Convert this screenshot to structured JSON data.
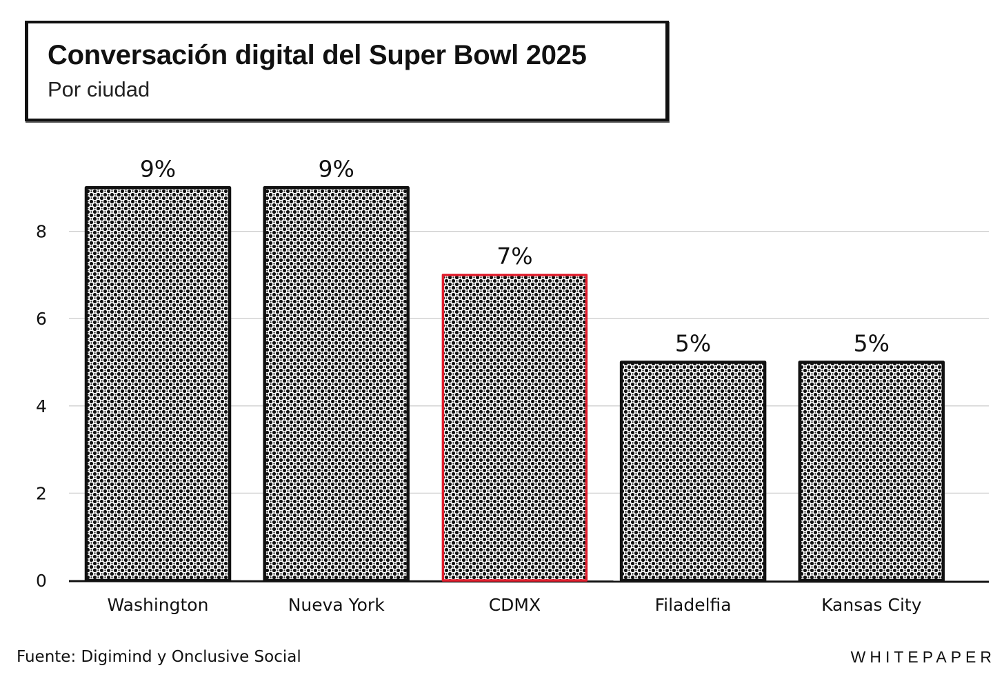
{
  "chart_data": {
    "type": "bar",
    "title": "Conversación digital del Super Bowl 2025",
    "subtitle": "Por ciudad",
    "categories": [
      "Washington",
      "Nueva York",
      "CDMX",
      "Filadelfia",
      "Kansas City"
    ],
    "values": [
      9,
      9,
      7,
      5,
      5
    ],
    "data_labels": [
      "9%",
      "9%",
      "7%",
      "5%",
      "5%"
    ],
    "highlight_category": "CDMX",
    "y_ticks": [
      0,
      2,
      4,
      6,
      8
    ],
    "ylim": [
      0,
      9
    ],
    "grid": "horizontal",
    "bar_pattern": "halftone-dots",
    "colors": {
      "bar_outline": "#111111",
      "highlight_outline": "#e01e2d",
      "grid": "#cfcfcf",
      "text": "#111111"
    }
  },
  "footer": {
    "source": "Fuente: Digimind y Onclusive Social",
    "brand": "WHITEPAPER"
  }
}
